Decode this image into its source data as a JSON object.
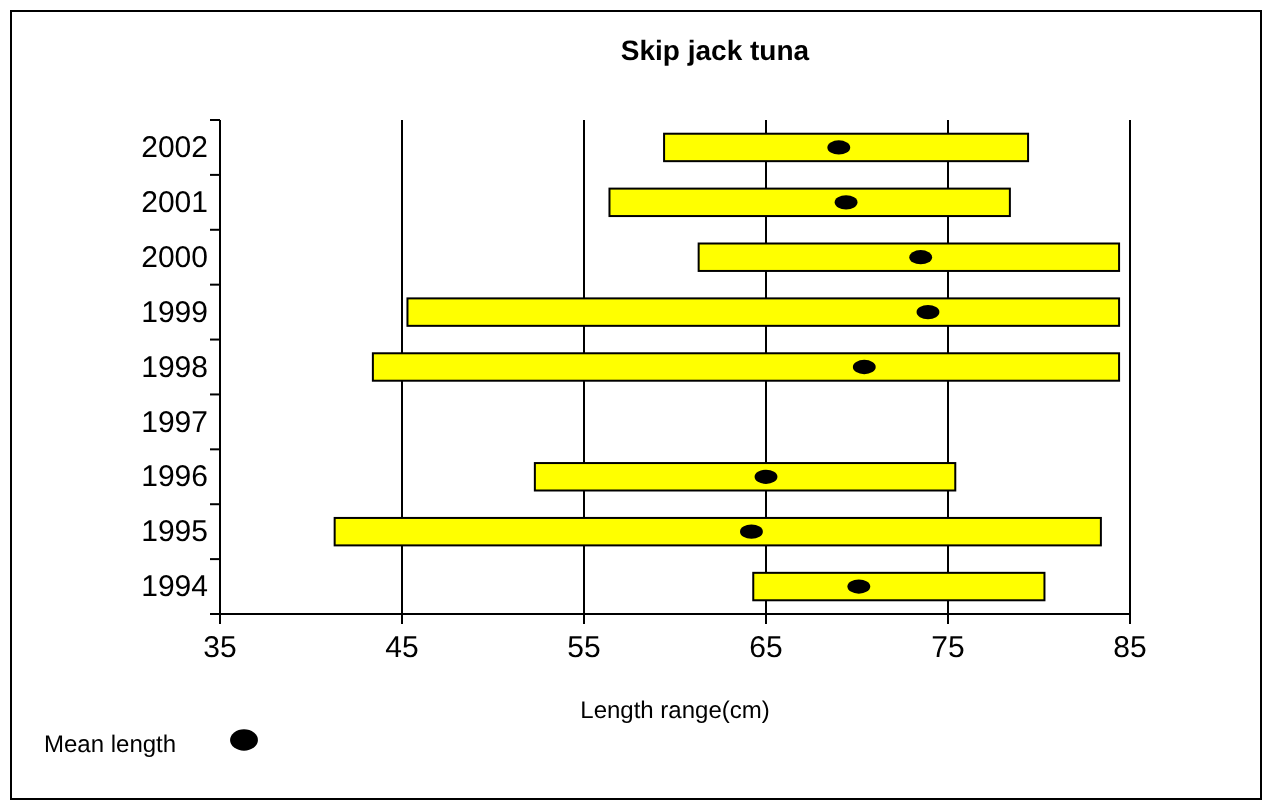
{
  "chart_data": {
    "type": "bar",
    "orientation": "horizontal",
    "title": "Skip jack tuna",
    "xlabel": "Length range(cm)",
    "categories": [
      "2002",
      "2001",
      "2000",
      "1999",
      "1998",
      "1997",
      "1996",
      "1995",
      "1994"
    ],
    "series": [
      {
        "type": "bar",
        "color": "#ffff00",
        "base": [
          59.4,
          56.4,
          61.3,
          45.3,
          43.4,
          null,
          52.3,
          41.3,
          64.3
        ],
        "values": [
          20,
          22,
          23.1,
          39.1,
          41,
          null,
          23.1,
          42.1,
          16
        ]
      },
      {
        "type": "scatter",
        "name": "Mean length",
        "color": "#000000",
        "marker": "circle",
        "values": [
          69,
          69.4,
          73.5,
          73.9,
          70.4,
          null,
          65,
          64.2,
          70.1
        ]
      }
    ],
    "xlim": [
      35,
      85
    ],
    "xticks": [
      35,
      45,
      55,
      65,
      75,
      85
    ],
    "grid": "x",
    "legend": "bottom left"
  }
}
